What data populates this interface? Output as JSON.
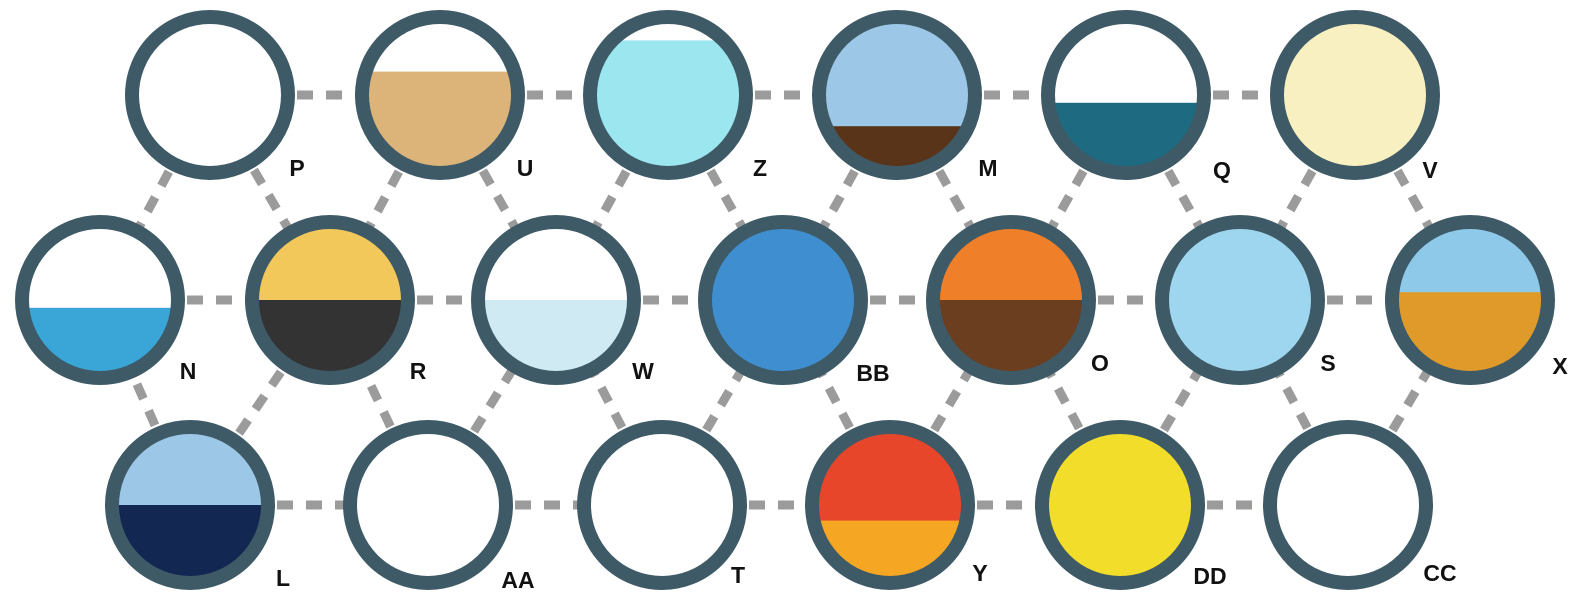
{
  "nodes": [
    {
      "label": "P"
    },
    {
      "label": "U"
    },
    {
      "label": "Z"
    },
    {
      "label": "M"
    },
    {
      "label": "Q"
    },
    {
      "label": "V"
    },
    {
      "label": "N"
    },
    {
      "label": "R"
    },
    {
      "label": "W"
    },
    {
      "label": "BB"
    },
    {
      "label": "O"
    },
    {
      "label": "S"
    },
    {
      "label": "X"
    },
    {
      "label": "L"
    },
    {
      "label": "AA"
    },
    {
      "label": "T"
    },
    {
      "label": "Y"
    },
    {
      "label": "DD"
    },
    {
      "label": "CC"
    }
  ]
}
